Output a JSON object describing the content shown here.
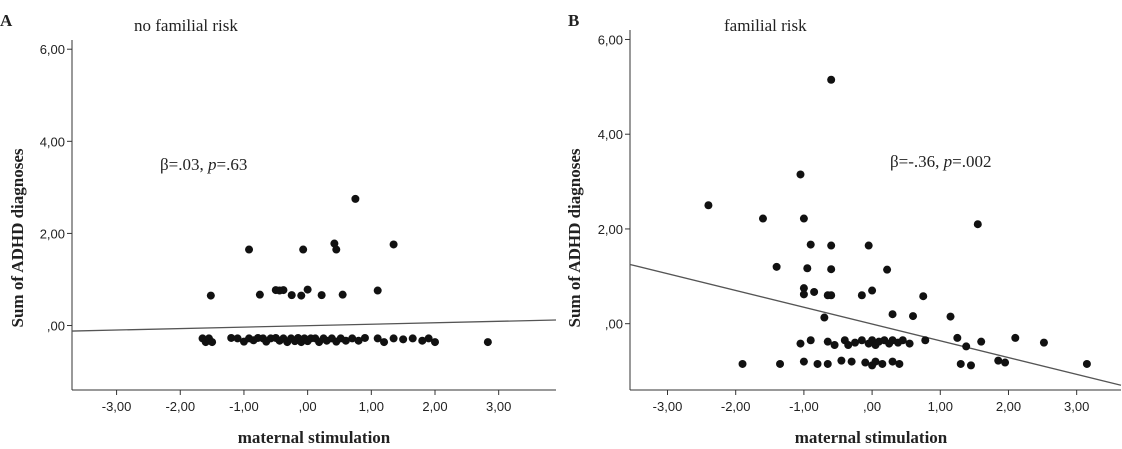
{
  "chart_data": [
    {
      "type": "scatter",
      "panel_label": "A",
      "title": "no familial  risk",
      "annotation": {
        "prefix": "β=.03, ",
        "p_label": "p",
        "suffix": "=.63"
      },
      "xlabel": "maternal stimulation",
      "ylabel": "Sum of ADHD diagnoses",
      "xlim": [
        -3.7,
        3.9
      ],
      "ylim": [
        -1.4,
        6.2
      ],
      "xticks": [
        -3,
        -2,
        -1,
        0,
        1,
        2,
        3
      ],
      "xtick_labels": [
        "-3,00",
        "-2,00",
        "-1,00",
        ",00",
        "1,00",
        "2,00",
        "3,00"
      ],
      "yticks": [
        0,
        2,
        4,
        6
      ],
      "ytick_labels": [
        ",00",
        "2,00",
        "4,00",
        "6,00"
      ],
      "regression": {
        "x": [
          -3.7,
          3.9
        ],
        "y": [
          -0.12,
          0.12
        ]
      },
      "points": [
        [
          -1.65,
          -0.28
        ],
        [
          -1.6,
          -0.36
        ],
        [
          -1.55,
          -0.28
        ],
        [
          -1.5,
          -0.36
        ],
        [
          -1.2,
          -0.27
        ],
        [
          -1.1,
          -0.28
        ],
        [
          -1.0,
          -0.35
        ],
        [
          -0.92,
          -0.28
        ],
        [
          -0.85,
          -0.32
        ],
        [
          -0.78,
          -0.27
        ],
        [
          -0.7,
          -0.28
        ],
        [
          -0.65,
          -0.35
        ],
        [
          -0.58,
          -0.28
        ],
        [
          -0.5,
          -0.27
        ],
        [
          -0.44,
          -0.33
        ],
        [
          -0.38,
          -0.28
        ],
        [
          -0.32,
          -0.36
        ],
        [
          -0.26,
          -0.28
        ],
        [
          -0.2,
          -0.34
        ],
        [
          -0.15,
          -0.27
        ],
        [
          -0.1,
          -0.36
        ],
        [
          -0.05,
          -0.28
        ],
        [
          0.0,
          -0.34
        ],
        [
          0.05,
          -0.28
        ],
        [
          0.12,
          -0.28
        ],
        [
          0.18,
          -0.36
        ],
        [
          0.25,
          -0.28
        ],
        [
          0.3,
          -0.33
        ],
        [
          0.38,
          -0.28
        ],
        [
          0.45,
          -0.35
        ],
        [
          0.52,
          -0.28
        ],
        [
          0.6,
          -0.33
        ],
        [
          0.7,
          -0.28
        ],
        [
          0.8,
          -0.33
        ],
        [
          0.9,
          -0.27
        ],
        [
          1.1,
          -0.28
        ],
        [
          1.2,
          -0.36
        ],
        [
          1.35,
          -0.28
        ],
        [
          1.5,
          -0.3
        ],
        [
          1.65,
          -0.28
        ],
        [
          1.8,
          -0.33
        ],
        [
          1.9,
          -0.28
        ],
        [
          2.0,
          -0.36
        ],
        [
          2.83,
          -0.36
        ],
        [
          -1.52,
          0.65
        ],
        [
          -0.75,
          0.67
        ],
        [
          -0.5,
          0.77
        ],
        [
          -0.44,
          0.76
        ],
        [
          -0.38,
          0.77
        ],
        [
          -0.25,
          0.66
        ],
        [
          -0.1,
          0.65
        ],
        [
          0.0,
          0.78
        ],
        [
          0.22,
          0.66
        ],
        [
          0.55,
          0.67
        ],
        [
          1.1,
          0.76
        ],
        [
          -0.92,
          1.65
        ],
        [
          -0.07,
          1.65
        ],
        [
          0.42,
          1.78
        ],
        [
          0.45,
          1.65
        ],
        [
          1.35,
          1.76
        ],
        [
          0.75,
          2.75
        ]
      ]
    },
    {
      "type": "scatter",
      "panel_label": "B",
      "title": "familial  risk",
      "annotation": {
        "prefix": "β=-.36, ",
        "p_label": "p",
        "suffix": "=.002"
      },
      "xlabel": "maternal stimulation",
      "ylabel": "Sum of ADHD diagnoses",
      "xlim": [
        -3.55,
        3.65
      ],
      "ylim": [
        -1.4,
        6.2
      ],
      "xticks": [
        -3,
        -2,
        -1,
        0,
        1,
        2,
        3
      ],
      "xtick_labels": [
        "-3,00",
        "-2,00",
        "-1,00",
        ",00",
        "1,00",
        "2,00",
        "3,00"
      ],
      "yticks": [
        0,
        2,
        4,
        6
      ],
      "ytick_labels": [
        ",00",
        "2,00",
        "4,00",
        "6,00"
      ],
      "regression": {
        "x": [
          -3.55,
          3.65
        ],
        "y": [
          1.25,
          -1.3
        ]
      },
      "points": [
        [
          -0.6,
          5.15
        ],
        [
          -1.05,
          3.15
        ],
        [
          -2.4,
          2.5
        ],
        [
          -1.6,
          2.22
        ],
        [
          -1.0,
          2.22
        ],
        [
          1.55,
          2.1
        ],
        [
          -0.9,
          1.67
        ],
        [
          -0.6,
          1.65
        ],
        [
          -0.05,
          1.65
        ],
        [
          -1.4,
          1.2
        ],
        [
          -0.95,
          1.17
        ],
        [
          -0.6,
          1.15
        ],
        [
          0.22,
          1.14
        ],
        [
          -1.0,
          0.75
        ],
        [
          -0.85,
          0.67
        ],
        [
          -1.0,
          0.62
        ],
        [
          -0.65,
          0.6
        ],
        [
          -0.6,
          0.6
        ],
        [
          -0.15,
          0.6
        ],
        [
          0.0,
          0.7
        ],
        [
          0.75,
          0.58
        ],
        [
          -0.7,
          0.13
        ],
        [
          0.3,
          0.2
        ],
        [
          0.6,
          0.16
        ],
        [
          1.15,
          0.15
        ],
        [
          -1.05,
          -0.42
        ],
        [
          -0.9,
          -0.35
        ],
        [
          -0.65,
          -0.38
        ],
        [
          -0.55,
          -0.45
        ],
        [
          -0.4,
          -0.35
        ],
        [
          -0.35,
          -0.45
        ],
        [
          -0.25,
          -0.4
        ],
        [
          -0.15,
          -0.35
        ],
        [
          -0.05,
          -0.42
        ],
        [
          0.0,
          -0.35
        ],
        [
          0.05,
          -0.45
        ],
        [
          0.1,
          -0.38
        ],
        [
          0.18,
          -0.35
        ],
        [
          0.25,
          -0.42
        ],
        [
          0.3,
          -0.35
        ],
        [
          0.38,
          -0.4
        ],
        [
          0.45,
          -0.35
        ],
        [
          0.55,
          -0.42
        ],
        [
          0.78,
          -0.35
        ],
        [
          1.25,
          -0.3
        ],
        [
          1.38,
          -0.48
        ],
        [
          1.6,
          -0.38
        ],
        [
          2.1,
          -0.3
        ],
        [
          2.52,
          -0.4
        ],
        [
          -1.9,
          -0.85
        ],
        [
          -1.35,
          -0.85
        ],
        [
          -1.0,
          -0.8
        ],
        [
          -0.8,
          -0.85
        ],
        [
          -0.65,
          -0.85
        ],
        [
          -0.45,
          -0.78
        ],
        [
          -0.3,
          -0.8
        ],
        [
          -0.1,
          -0.82
        ],
        [
          0.0,
          -0.88
        ],
        [
          0.05,
          -0.8
        ],
        [
          0.15,
          -0.85
        ],
        [
          0.3,
          -0.8
        ],
        [
          0.4,
          -0.85
        ],
        [
          1.3,
          -0.85
        ],
        [
          1.45,
          -0.88
        ],
        [
          1.85,
          -0.78
        ],
        [
          1.95,
          -0.82
        ],
        [
          3.15,
          -0.85
        ]
      ]
    }
  ]
}
